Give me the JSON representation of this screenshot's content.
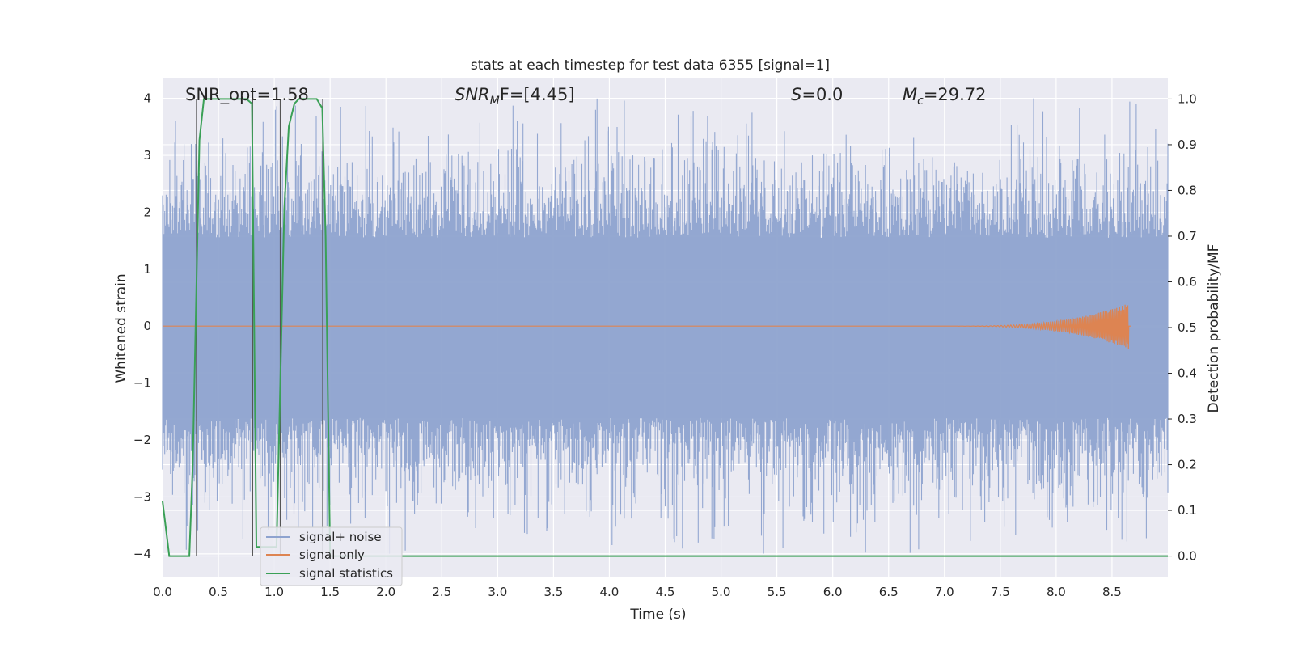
{
  "chart_data": {
    "type": "line",
    "title": "stats at each timestep for test data 6355 [signal=1]",
    "xlabel": "Time (s)",
    "ylabel": "Whitened strain",
    "ylabel_right": "Detection probability/MF",
    "xlim": [
      0.0,
      9.0
    ],
    "ylim": [
      -4.4,
      4.35
    ],
    "ylim_right": [
      -0.045,
      1.045
    ],
    "xticks": [
      "0.0",
      "0.5",
      "1.0",
      "1.5",
      "2.0",
      "2.5",
      "3.0",
      "3.5",
      "4.0",
      "4.5",
      "5.0",
      "5.5",
      "6.0",
      "6.5",
      "7.0",
      "7.5",
      "8.0",
      "8.5"
    ],
    "yticks": [
      "4",
      "3",
      "2",
      "1",
      "0",
      "−1",
      "−2",
      "−3",
      "−4"
    ],
    "yticks_right": [
      "1.0",
      "0.9",
      "0.8",
      "0.7",
      "0.6",
      "0.5",
      "0.4",
      "0.3",
      "0.2",
      "0.1",
      "0.0"
    ],
    "grid": true,
    "legend_position": "lower-left",
    "annotations": {
      "snr_opt": "SNR_opt=1.58",
      "snr_mf_base": "SNR",
      "snr_mf_sub": "M",
      "snr_mf_rest": "F=[4.45]",
      "s_sym": "S",
      "s_val": "=0.0",
      "mc_base": "M",
      "mc_sub": "c",
      "mc_val": "=29.72"
    },
    "vertical_markers_s": [
      0.305,
      0.805,
      1.055,
      1.435
    ],
    "series": [
      {
        "name": "signal+ noise",
        "color": "#8ea3cf",
        "description": "whitened noisy strain, roughly unit variance, extremes near ±4",
        "envelope": {
          "typical_max": 2.5,
          "peak_max": 4.0,
          "typical_min": -2.6,
          "peak_min": -4.0
        }
      },
      {
        "name": "signal only",
        "color": "#dd8452",
        "description": "chirp signal, near zero until a ringup ending near t=8.65",
        "chirp": {
          "start": 7.0,
          "end": 8.65,
          "peak_amp": 0.4
        }
      },
      {
        "name": "signal statistics",
        "color": "#3aa056",
        "axis": "right",
        "x": [
          0.0,
          0.06,
          0.24,
          0.27,
          0.33,
          0.37,
          0.4,
          0.75,
          0.8,
          0.84,
          1.02,
          1.09,
          1.13,
          1.18,
          1.22,
          1.38,
          1.43,
          1.46,
          1.5,
          1.6,
          9.0
        ],
        "y": [
          0.12,
          0.0,
          0.0,
          0.2,
          0.91,
          1.0,
          1.0,
          1.0,
          0.99,
          0.02,
          0.02,
          0.76,
          0.94,
          0.99,
          1.0,
          1.0,
          0.98,
          0.7,
          0.0,
          0.0,
          0.0
        ]
      }
    ]
  },
  "legend": {
    "items": [
      {
        "label": "signal+ noise",
        "color": "#8ea3cf"
      },
      {
        "label": "signal only",
        "color": "#dd8452"
      },
      {
        "label": "signal statistics",
        "color": "#3aa056"
      }
    ]
  },
  "colors": {
    "background": "#ffffff",
    "plot_background": "#eaeaf2",
    "grid": "#ffffff",
    "marker": "#555555"
  }
}
